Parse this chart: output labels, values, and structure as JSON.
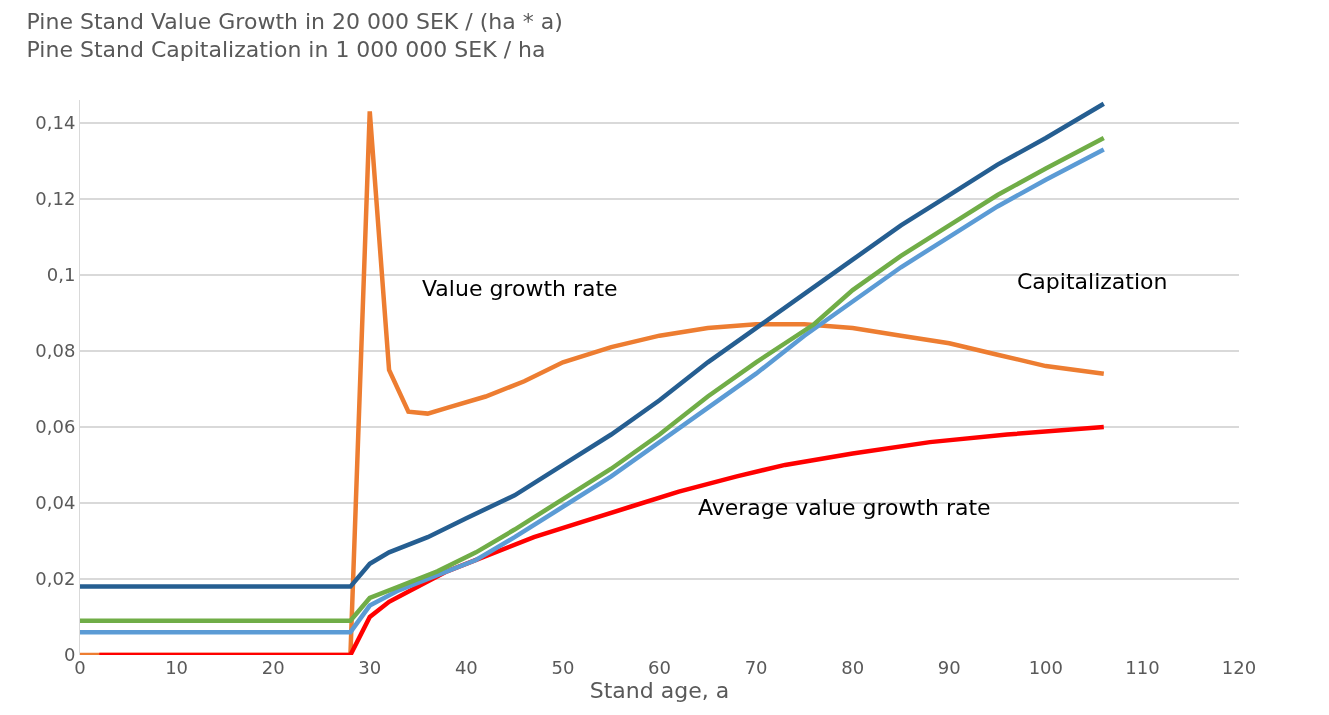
{
  "chart_data": {
    "type": "line",
    "title": "Pine Stand Value Growth in 20 000 SEK / (ha * a)\nPine Stand Capitalization in 1 000 000 SEK / ha",
    "xlabel": "Stand age, a",
    "series": [
      {
        "color": "#ed7d31",
        "x": [
          0,
          2,
          28,
          30,
          32,
          34,
          36,
          38,
          42,
          46,
          50,
          55,
          60,
          65,
          70,
          75,
          80,
          85,
          90,
          95,
          100,
          106
        ],
        "values": [
          0,
          0,
          0,
          0.143,
          0.075,
          0.064,
          0.0635,
          0.065,
          0.068,
          0.072,
          0.077,
          0.081,
          0.084,
          0.086,
          0.087,
          0.087,
          0.086,
          0.084,
          0.082,
          0.079,
          0.076,
          0.074
        ]
      },
      {
        "color": "#ff0000",
        "x": [
          2,
          28,
          30,
          32,
          35,
          38,
          42,
          47,
          52,
          57,
          62,
          68,
          73,
          80,
          88,
          96,
          106
        ],
        "values": [
          0,
          0,
          0.01,
          0.014,
          0.018,
          0.022,
          0.026,
          0.031,
          0.035,
          0.039,
          0.043,
          0.047,
          0.05,
          0.053,
          0.056,
          0.058,
          0.06
        ]
      },
      {
        "color": "#5b9bd5",
        "x": [
          0,
          28,
          30,
          33,
          37,
          41,
          45,
          50,
          55,
          60,
          65,
          70,
          75,
          80,
          85,
          90,
          95,
          100,
          106
        ],
        "values": [
          0.006,
          0.006,
          0.013,
          0.017,
          0.021,
          0.025,
          0.031,
          0.039,
          0.047,
          0.056,
          0.065,
          0.074,
          0.084,
          0.093,
          0.102,
          0.11,
          0.118,
          0.125,
          0.133
        ]
      },
      {
        "color": "#70ad47",
        "x": [
          0,
          28,
          30,
          33,
          37,
          41,
          45,
          50,
          55,
          60,
          65,
          70,
          76,
          80,
          85,
          90,
          95,
          100,
          106
        ],
        "values": [
          0.009,
          0.009,
          0.015,
          0.018,
          0.022,
          0.027,
          0.033,
          0.041,
          0.049,
          0.058,
          0.068,
          0.077,
          0.087,
          0.096,
          0.105,
          0.113,
          0.121,
          0.128,
          0.136
        ]
      },
      {
        "color": "#255e91",
        "x": [
          0,
          28,
          30,
          32,
          36,
          40,
          45,
          50,
          55,
          60,
          65,
          70,
          75,
          80,
          85,
          90,
          95,
          100,
          106
        ],
        "values": [
          0.018,
          0.018,
          0.024,
          0.027,
          0.031,
          0.036,
          0.042,
          0.05,
          0.058,
          0.067,
          0.077,
          0.086,
          0.095,
          0.104,
          0.113,
          0.121,
          0.129,
          0.136,
          0.145
        ]
      }
    ],
    "annotations": [
      "Value growth rate",
      "Capitalization",
      "Average value growth rate"
    ],
    "xlim": [
      0,
      120
    ],
    "xticks": [
      0,
      10,
      20,
      30,
      40,
      50,
      60,
      70,
      80,
      90,
      100,
      110,
      120
    ],
    "ylim": [
      0,
      0.146
    ],
    "yticks": [
      0,
      {
        "value": 0.02,
        "label": "0,02"
      },
      {
        "value": 0.04,
        "label": "0,04"
      },
      {
        "value": 0.06,
        "label": "0,06"
      },
      {
        "value": 0.08,
        "label": "0,08"
      },
      {
        "value": 0.1,
        "label": "0,1"
      },
      {
        "value": 0.12,
        "label": "0,12"
      },
      {
        "value": 0.14,
        "label": "0,14"
      }
    ],
    "grid": "y",
    "marker": "none",
    "line_style": "solid"
  }
}
